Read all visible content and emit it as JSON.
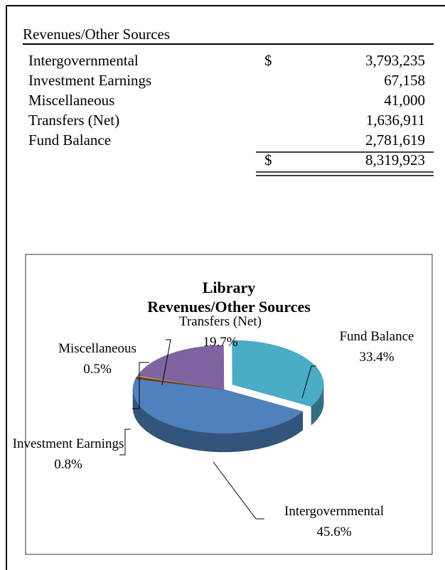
{
  "table": {
    "header": "Revenues/Other Sources",
    "rows": [
      {
        "label": "Intergovernmental",
        "currency": "$",
        "amount": "3,793,235"
      },
      {
        "label": "Investment Earnings",
        "amount": "67,158"
      },
      {
        "label": "Miscellaneous",
        "amount": "41,000"
      },
      {
        "label": "Transfers (Net)",
        "amount": "1,636,911"
      },
      {
        "label": "Fund Balance",
        "amount": "2,781,619"
      }
    ],
    "total": {
      "currency": "$",
      "amount": "8,319,923"
    }
  },
  "chart_data": {
    "type": "pie",
    "title": [
      "Library",
      "Revenues/Other Sources"
    ],
    "categories": [
      "Intergovernmental",
      "Investment Earnings",
      "Miscellaneous",
      "Transfers (Net)",
      "Fund Balance"
    ],
    "values": [
      45.6,
      0.8,
      0.5,
      19.7,
      33.4
    ],
    "value_labels": [
      "45.6%",
      "0.8%",
      "0.5%",
      "19.7%",
      "33.4%"
    ],
    "colors": [
      "#4f81bd",
      "#8b2a22",
      "#9bbb59",
      "#8064a2",
      "#4bacc6"
    ]
  }
}
